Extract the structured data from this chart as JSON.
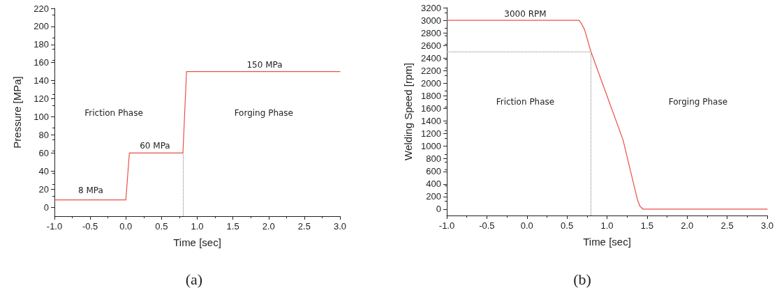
{
  "chart_data": [
    {
      "type": "line",
      "xlabel": "Time [sec]",
      "ylabel": "Pressure [MPa]",
      "x": [
        -1,
        0,
        0.05,
        0.8,
        0.85,
        3
      ],
      "series": [
        {
          "color": "#e8504a",
          "values": [
            8,
            8,
            60,
            60,
            150,
            150
          ]
        }
      ],
      "xlim": [
        -1,
        3
      ],
      "xticks": [
        {
          "value": -1,
          "label": "-1.0"
        },
        {
          "value": -0.5,
          "label": "-0.5"
        },
        {
          "value": 0,
          "label": "0.0"
        },
        {
          "value": 0.5,
          "label": "0.5"
        },
        {
          "value": 1,
          "label": "1.0"
        },
        {
          "value": 1.5,
          "label": "1.5"
        },
        {
          "value": 2,
          "label": "2.0"
        },
        {
          "value": 2.5,
          "label": "2.5"
        },
        {
          "value": 3,
          "label": "3.0"
        }
      ],
      "ylim": [
        -10,
        220
      ],
      "yticks": [
        0,
        20,
        40,
        60,
        80,
        100,
        120,
        140,
        160,
        180,
        200,
        220
      ],
      "grid": false,
      "marker": "none",
      "line_style": "solid",
      "ref_lines": [
        {
          "axis": "x",
          "value": 0.8,
          "color": "#808080",
          "line_style": "dotted"
        }
      ],
      "annotations": [
        "8 MPa",
        "60 MPa",
        "150 MPa",
        "Friction Phase",
        "Forging Phase",
        "(a)"
      ]
    },
    {
      "type": "line",
      "xlabel": "Time [sec]",
      "ylabel": "Welding Speed [rpm]",
      "x": [
        -1,
        0.65,
        0.68,
        0.72,
        0.8,
        1.0,
        1.2,
        1.38,
        1.41,
        1.45,
        3
      ],
      "series": [
        {
          "color": "#e8504a",
          "values": [
            3000,
            3000,
            2950,
            2850,
            2500,
            1800,
            1100,
            150,
            50,
            0,
            0
          ]
        }
      ],
      "xlim": [
        -1,
        3
      ],
      "xticks": [
        {
          "value": -1,
          "label": "-1.0"
        },
        {
          "value": -0.5,
          "label": "-0.5"
        },
        {
          "value": 0,
          "label": "0.0"
        },
        {
          "value": 0.5,
          "label": "0.5"
        },
        {
          "value": 1,
          "label": "1.0"
        },
        {
          "value": 1.5,
          "label": "1.5"
        },
        {
          "value": 2,
          "label": "2.0"
        },
        {
          "value": 2.5,
          "label": "2.5"
        },
        {
          "value": 3,
          "label": "3.0"
        }
      ],
      "ylim": [
        -100,
        3200
      ],
      "yticks": [
        0,
        200,
        400,
        600,
        800,
        1000,
        1200,
        1400,
        1600,
        1800,
        2000,
        2200,
        2400,
        2600,
        2800,
        3000,
        3200
      ],
      "grid": false,
      "marker": "none",
      "line_style": "solid",
      "ref_lines": [
        {
          "axis": "x",
          "value": 0.8,
          "color": "#808080",
          "line_style": "dotted"
        },
        {
          "axis": "y",
          "value": 2500,
          "color": "#808080",
          "line_style": "dotted"
        }
      ],
      "annotations": [
        "3000 RPM",
        "Friction Phase",
        "Forging Phase",
        "(b)"
      ]
    }
  ]
}
